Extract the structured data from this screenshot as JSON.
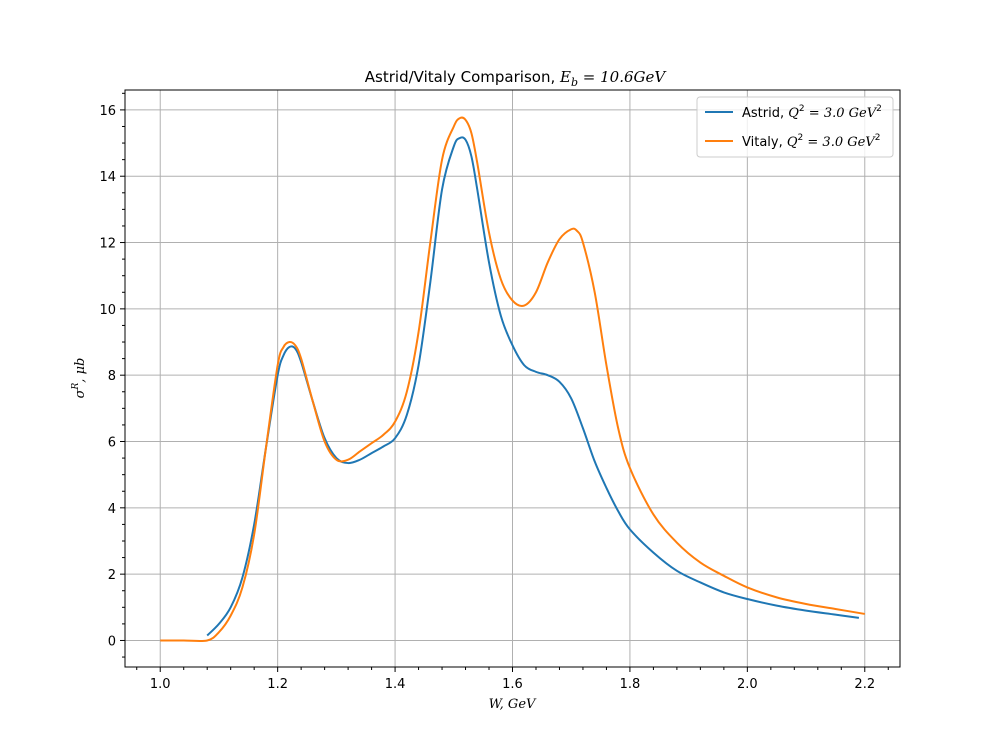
{
  "chart_data": {
    "type": "line",
    "title_text": "Astrid/Vitaly Comparison, ",
    "title_math": "E",
    "title_math_sub": "b",
    "title_math_rest": " = 10.6GeV",
    "xlabel": "W, GeV",
    "ylabel": "σ",
    "ylabel_sup": "R",
    "ylabel_rest": ", μb",
    "xlim": [
      0.94,
      2.26
    ],
    "ylim": [
      -0.8,
      16.6
    ],
    "xticks": [
      1.0,
      1.2,
      1.4,
      1.6,
      1.8,
      2.0,
      2.2
    ],
    "xtick_labels": [
      "1.0",
      "1.2",
      "1.4",
      "1.6",
      "1.8",
      "2.0",
      "2.2"
    ],
    "yticks": [
      0,
      2,
      4,
      6,
      8,
      10,
      12,
      14,
      16
    ],
    "ytick_labels": [
      "0",
      "2",
      "4",
      "6",
      "8",
      "10",
      "12",
      "14",
      "16"
    ],
    "grid": true,
    "legend_position": "top-right",
    "series": [
      {
        "name_prefix": "Astrid, ",
        "name_math": "Q",
        "name_sup": "2",
        "name_rest": " = 3.0 GeV",
        "name_sup2": "2",
        "color": "#1f77b4",
        "x": [
          1.08,
          1.1,
          1.12,
          1.14,
          1.16,
          1.18,
          1.2,
          1.21,
          1.22,
          1.23,
          1.24,
          1.26,
          1.28,
          1.3,
          1.32,
          1.34,
          1.36,
          1.38,
          1.4,
          1.42,
          1.44,
          1.46,
          1.48,
          1.5,
          1.51,
          1.52,
          1.53,
          1.54,
          1.56,
          1.58,
          1.6,
          1.62,
          1.64,
          1.66,
          1.68,
          1.7,
          1.72,
          1.74,
          1.76,
          1.78,
          1.8,
          1.84,
          1.88,
          1.92,
          1.96,
          2.0,
          2.05,
          2.1,
          2.15,
          2.19
        ],
        "y": [
          0.15,
          0.5,
          1.0,
          1.9,
          3.5,
          5.8,
          8.0,
          8.6,
          8.85,
          8.8,
          8.4,
          7.2,
          6.1,
          5.5,
          5.35,
          5.45,
          5.65,
          5.85,
          6.1,
          6.8,
          8.3,
          10.8,
          13.6,
          14.9,
          15.15,
          15.1,
          14.6,
          13.6,
          11.4,
          9.8,
          8.9,
          8.3,
          8.1,
          8.0,
          7.8,
          7.3,
          6.4,
          5.4,
          4.6,
          3.9,
          3.35,
          2.65,
          2.1,
          1.75,
          1.45,
          1.25,
          1.05,
          0.9,
          0.78,
          0.68
        ]
      },
      {
        "name_prefix": "Vitaly, ",
        "name_math": "Q",
        "name_sup": "2",
        "name_rest": " = 3.0 GeV",
        "name_sup2": "2",
        "color": "#ff7f0e",
        "x": [
          1.0,
          1.04,
          1.08,
          1.1,
          1.12,
          1.14,
          1.16,
          1.18,
          1.2,
          1.21,
          1.22,
          1.23,
          1.24,
          1.26,
          1.28,
          1.3,
          1.32,
          1.34,
          1.36,
          1.38,
          1.4,
          1.42,
          1.44,
          1.46,
          1.48,
          1.5,
          1.51,
          1.52,
          1.53,
          1.54,
          1.56,
          1.58,
          1.6,
          1.62,
          1.64,
          1.66,
          1.68,
          1.7,
          1.71,
          1.72,
          1.74,
          1.76,
          1.78,
          1.8,
          1.84,
          1.88,
          1.92,
          1.96,
          2.0,
          2.05,
          2.1,
          2.15,
          2.2
        ],
        "y": [
          0.0,
          0.0,
          0.0,
          0.25,
          0.75,
          1.6,
          3.2,
          5.8,
          8.3,
          8.85,
          9.0,
          8.9,
          8.5,
          7.2,
          6.0,
          5.45,
          5.45,
          5.7,
          5.95,
          6.2,
          6.6,
          7.5,
          9.3,
          12.0,
          14.5,
          15.5,
          15.75,
          15.7,
          15.3,
          14.4,
          12.3,
          10.9,
          10.25,
          10.1,
          10.5,
          11.4,
          12.1,
          12.4,
          12.35,
          12.0,
          10.5,
          8.3,
          6.4,
          5.2,
          3.8,
          2.95,
          2.35,
          1.95,
          1.6,
          1.3,
          1.1,
          0.95,
          0.8
        ]
      }
    ]
  }
}
